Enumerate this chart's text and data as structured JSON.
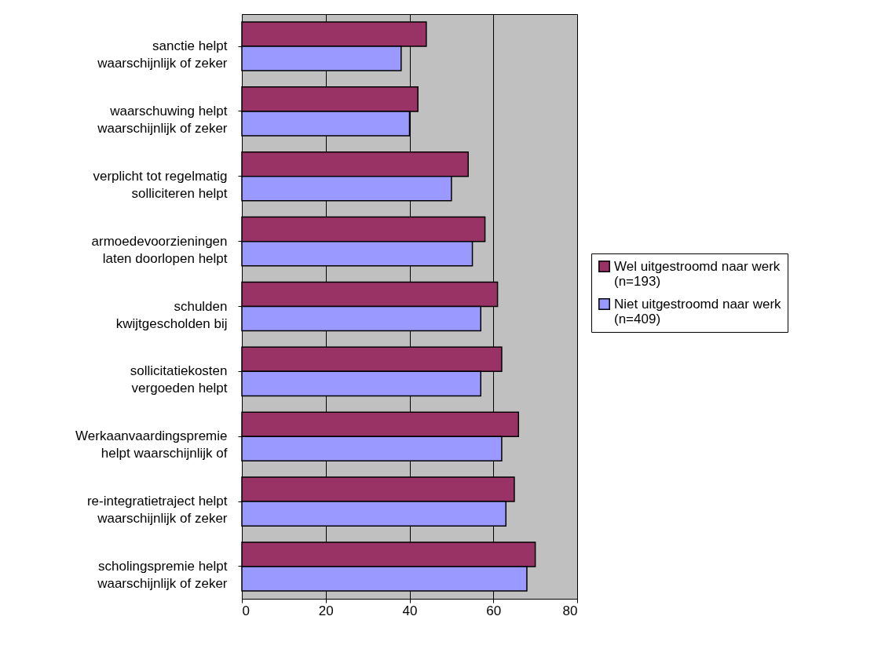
{
  "chart_data": {
    "type": "bar",
    "orientation": "horizontal",
    "categories": [
      "sanctie helpt\nwaarschijnlijk of zeker",
      "waarschuwing helpt\nwaarschijnlijk of zeker",
      "verplicht tot regelmatig\nsolliciteren helpt",
      "armoedevoorzieningen\nlaten doorlopen helpt",
      "schulden\nkwijtgescholden bij",
      "sollicitatiekosten\nvergoeden helpt",
      "Werkaanvaardingspremie\nhelpt waarschijnlijk of",
      "re-integratietraject helpt\nwaarschijnlijk of zeker",
      "scholingspremie helpt\nwaarschijnlijk of zeker"
    ],
    "series": [
      {
        "name": "Wel uitgestroomd naar werk\n(n=193)",
        "color": "#993366",
        "values": [
          44,
          42,
          54,
          58,
          61,
          62,
          66,
          65,
          70
        ]
      },
      {
        "name": "Niet uitgestroomd naar werk\n(n=409)",
        "color": "#9999ff",
        "values": [
          38,
          40,
          50,
          55,
          57,
          57,
          62,
          63,
          68
        ]
      }
    ],
    "xlim": [
      0,
      80
    ],
    "xticks": [
      0,
      20,
      40,
      60,
      80
    ],
    "grid": "x",
    "legend": "right"
  }
}
